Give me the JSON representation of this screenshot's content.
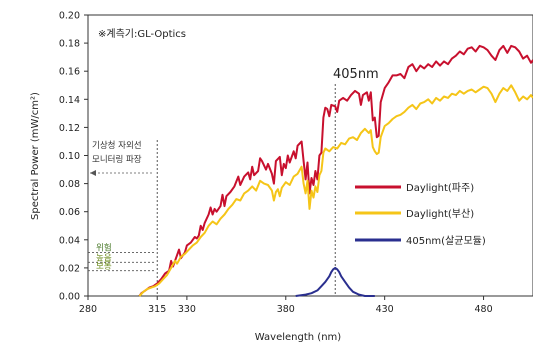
{
  "chart_data": {
    "type": "line",
    "note": "※계측기:GL-Optics",
    "xlabel": "Wavelength (nm)",
    "ylabel": "Spectral Power (mW/cm²)",
    "xlim": [
      280,
      505
    ],
    "ylim": [
      0,
      0.2
    ],
    "xticks": [
      {
        "value": 280,
        "label": "280"
      },
      {
        "value": 315,
        "label": "315"
      },
      {
        "value": 330,
        "label": "330"
      },
      {
        "value": 380,
        "label": "380"
      },
      {
        "value": 430,
        "label": "430"
      },
      {
        "value": 480,
        "label": "480"
      }
    ],
    "yticks": [
      {
        "value": 0,
        "label": "0.00"
      },
      {
        "value": 0.02,
        "label": "0.02"
      },
      {
        "value": 0.04,
        "label": "0.04"
      },
      {
        "value": 0.06,
        "label": "0.06"
      },
      {
        "value": 0.08,
        "label": "0.08"
      },
      {
        "value": 0.1,
        "label": "0.10"
      },
      {
        "value": 0.12,
        "label": "0.12"
      },
      {
        "value": 0.14,
        "label": "0.14"
      },
      {
        "value": 0.16,
        "label": "0.16"
      },
      {
        "value": 0.18,
        "label": "0.18"
      },
      {
        "value": 0.2,
        "label": "0.20"
      }
    ],
    "grid": false,
    "legend_position": "right",
    "annotations": {
      "peak_label": "405nm",
      "peak_x": 405,
      "uv_monitor_label": [
        "기상청 자외선",
        "모니터링 파장"
      ],
      "uv_monitor_x": 315,
      "levels": [
        {
          "label": "위험",
          "value": 0.031,
          "color": "#4a7a2a"
        },
        {
          "label": "높음",
          "value": 0.024,
          "color": "#6a8a1a"
        },
        {
          "label": "보통",
          "value": 0.018,
          "color": "#6a8a1a"
        }
      ]
    },
    "series": [
      {
        "name": "Daylight(파주)",
        "color": "#c8102e",
        "points": [
          [
            306,
            0
          ],
          [
            307,
            0.002
          ],
          [
            309,
            0.004
          ],
          [
            311,
            0.006
          ],
          [
            313,
            0.007
          ],
          [
            315,
            0.009
          ],
          [
            317,
            0.012
          ],
          [
            319,
            0.016
          ],
          [
            321,
            0.018
          ],
          [
            322,
            0.025
          ],
          [
            323,
            0.021
          ],
          [
            325,
            0.029
          ],
          [
            326,
            0.033
          ],
          [
            327,
            0.027
          ],
          [
            329,
            0.031
          ],
          [
            330,
            0.036
          ],
          [
            332,
            0.038
          ],
          [
            334,
            0.042
          ],
          [
            335,
            0.041
          ],
          [
            336,
            0.043
          ],
          [
            337,
            0.05
          ],
          [
            338,
            0.047
          ],
          [
            339,
            0.052
          ],
          [
            341,
            0.058
          ],
          [
            342,
            0.063
          ],
          [
            343,
            0.058
          ],
          [
            344,
            0.062
          ],
          [
            345,
            0.06
          ],
          [
            347,
            0.064
          ],
          [
            348,
            0.072
          ],
          [
            349,
            0.064
          ],
          [
            350,
            0.071
          ],
          [
            352,
            0.074
          ],
          [
            354,
            0.078
          ],
          [
            356,
            0.085
          ],
          [
            357,
            0.079
          ],
          [
            359,
            0.085
          ],
          [
            361,
            0.088
          ],
          [
            362,
            0.083
          ],
          [
            363,
            0.092
          ],
          [
            364,
            0.086
          ],
          [
            366,
            0.089
          ],
          [
            367,
            0.098
          ],
          [
            368,
            0.096
          ],
          [
            370,
            0.09
          ],
          [
            371,
            0.094
          ],
          [
            373,
            0.087
          ],
          [
            374,
            0.08
          ],
          [
            375,
            0.096
          ],
          [
            377,
            0.099
          ],
          [
            378,
            0.086
          ],
          [
            379,
            0.094
          ],
          [
            380,
            0.091
          ],
          [
            381,
            0.1
          ],
          [
            382,
            0.095
          ],
          [
            384,
            0.103
          ],
          [
            385,
            0.098
          ],
          [
            386,
            0.107
          ],
          [
            388,
            0.11
          ],
          [
            389,
            0.096
          ],
          [
            390,
            0.083
          ],
          [
            391,
            0.095
          ],
          [
            392,
            0.073
          ],
          [
            393,
            0.084
          ],
          [
            394,
            0.079
          ],
          [
            395,
            0.089
          ],
          [
            396,
            0.083
          ],
          [
            397,
            0.1
          ],
          [
            398,
            0.102
          ],
          [
            399,
            0.127
          ],
          [
            400,
            0.134
          ],
          [
            401,
            0.133
          ],
          [
            402,
            0.128
          ],
          [
            403,
            0.136
          ],
          [
            405,
            0.135
          ],
          [
            406,
            0.131
          ],
          [
            407,
            0.139
          ],
          [
            409,
            0.141
          ],
          [
            411,
            0.139
          ],
          [
            413,
            0.143
          ],
          [
            415,
            0.146
          ],
          [
            417,
            0.144
          ],
          [
            418,
            0.136
          ],
          [
            419,
            0.143
          ],
          [
            421,
            0.145
          ],
          [
            422,
            0.139
          ],
          [
            423,
            0.145
          ],
          [
            424,
            0.125
          ],
          [
            425,
            0.127
          ],
          [
            426,
            0.113
          ],
          [
            427,
            0.114
          ],
          [
            428,
            0.138
          ],
          [
            430,
            0.148
          ],
          [
            432,
            0.152
          ],
          [
            434,
            0.157
          ],
          [
            436,
            0.157
          ],
          [
            438,
            0.158
          ],
          [
            440,
            0.155
          ],
          [
            442,
            0.163
          ],
          [
            444,
            0.165
          ],
          [
            446,
            0.16
          ],
          [
            448,
            0.164
          ],
          [
            450,
            0.162
          ],
          [
            452,
            0.165
          ],
          [
            454,
            0.163
          ],
          [
            456,
            0.167
          ],
          [
            458,
            0.164
          ],
          [
            460,
            0.167
          ],
          [
            462,
            0.165
          ],
          [
            464,
            0.169
          ],
          [
            466,
            0.171
          ],
          [
            468,
            0.174
          ],
          [
            470,
            0.172
          ],
          [
            472,
            0.176
          ],
          [
            474,
            0.177
          ],
          [
            476,
            0.174
          ],
          [
            478,
            0.178
          ],
          [
            480,
            0.177
          ],
          [
            482,
            0.175
          ],
          [
            484,
            0.171
          ],
          [
            486,
            0.168
          ],
          [
            488,
            0.175
          ],
          [
            490,
            0.178
          ],
          [
            492,
            0.173
          ],
          [
            494,
            0.178
          ],
          [
            496,
            0.177
          ],
          [
            498,
            0.174
          ],
          [
            500,
            0.169
          ],
          [
            502,
            0.171
          ],
          [
            504,
            0.166
          ],
          [
            505,
            0.168
          ]
        ]
      },
      {
        "name": "Daylight(부산)",
        "color": "#f5c518",
        "points": [
          [
            306,
            0
          ],
          [
            308,
            0.003
          ],
          [
            310,
            0.005
          ],
          [
            312,
            0.006
          ],
          [
            314,
            0.007
          ],
          [
            316,
            0.009
          ],
          [
            318,
            0.012
          ],
          [
            320,
            0.015
          ],
          [
            322,
            0.02
          ],
          [
            324,
            0.025
          ],
          [
            325,
            0.023
          ],
          [
            327,
            0.028
          ],
          [
            329,
            0.03
          ],
          [
            331,
            0.033
          ],
          [
            333,
            0.036
          ],
          [
            335,
            0.038
          ],
          [
            337,
            0.042
          ],
          [
            339,
            0.045
          ],
          [
            341,
            0.05
          ],
          [
            343,
            0.053
          ],
          [
            345,
            0.051
          ],
          [
            347,
            0.055
          ],
          [
            349,
            0.058
          ],
          [
            351,
            0.062
          ],
          [
            353,
            0.065
          ],
          [
            355,
            0.069
          ],
          [
            357,
            0.068
          ],
          [
            359,
            0.073
          ],
          [
            361,
            0.075
          ],
          [
            363,
            0.078
          ],
          [
            365,
            0.075
          ],
          [
            367,
            0.082
          ],
          [
            369,
            0.08
          ],
          [
            371,
            0.079
          ],
          [
            373,
            0.075
          ],
          [
            374,
            0.068
          ],
          [
            375,
            0.074
          ],
          [
            376,
            0.076
          ],
          [
            377,
            0.071
          ],
          [
            378,
            0.077
          ],
          [
            380,
            0.081
          ],
          [
            382,
            0.079
          ],
          [
            384,
            0.085
          ],
          [
            386,
            0.087
          ],
          [
            388,
            0.092
          ],
          [
            389,
            0.08
          ],
          [
            390,
            0.073
          ],
          [
            391,
            0.082
          ],
          [
            392,
            0.062
          ],
          [
            393,
            0.075
          ],
          [
            394,
            0.07
          ],
          [
            395,
            0.078
          ],
          [
            396,
            0.074
          ],
          [
            397,
            0.086
          ],
          [
            398,
            0.089
          ],
          [
            399,
            0.102
          ],
          [
            400,
            0.105
          ],
          [
            402,
            0.103
          ],
          [
            404,
            0.106
          ],
          [
            406,
            0.105
          ],
          [
            408,
            0.109
          ],
          [
            410,
            0.108
          ],
          [
            412,
            0.112
          ],
          [
            414,
            0.113
          ],
          [
            416,
            0.111
          ],
          [
            418,
            0.116
          ],
          [
            420,
            0.119
          ],
          [
            422,
            0.116
          ],
          [
            423,
            0.118
          ],
          [
            424,
            0.106
          ],
          [
            425,
            0.103
          ],
          [
            426,
            0.101
          ],
          [
            427,
            0.102
          ],
          [
            428,
            0.113
          ],
          [
            430,
            0.121
          ],
          [
            432,
            0.123
          ],
          [
            434,
            0.126
          ],
          [
            436,
            0.128
          ],
          [
            438,
            0.129
          ],
          [
            440,
            0.131
          ],
          [
            442,
            0.134
          ],
          [
            444,
            0.136
          ],
          [
            446,
            0.133
          ],
          [
            448,
            0.137
          ],
          [
            450,
            0.138
          ],
          [
            452,
            0.14
          ],
          [
            454,
            0.137
          ],
          [
            456,
            0.141
          ],
          [
            458,
            0.139
          ],
          [
            460,
            0.142
          ],
          [
            462,
            0.141
          ],
          [
            464,
            0.144
          ],
          [
            466,
            0.143
          ],
          [
            468,
            0.146
          ],
          [
            470,
            0.144
          ],
          [
            472,
            0.146
          ],
          [
            474,
            0.147
          ],
          [
            476,
            0.145
          ],
          [
            478,
            0.147
          ],
          [
            480,
            0.149
          ],
          [
            482,
            0.148
          ],
          [
            484,
            0.144
          ],
          [
            486,
            0.138
          ],
          [
            488,
            0.144
          ],
          [
            490,
            0.148
          ],
          [
            492,
            0.146
          ],
          [
            494,
            0.15
          ],
          [
            496,
            0.145
          ],
          [
            498,
            0.139
          ],
          [
            500,
            0.142
          ],
          [
            502,
            0.14
          ],
          [
            504,
            0.143
          ],
          [
            505,
            0.141
          ]
        ]
      },
      {
        "name": "405nm(살균모듈)",
        "color": "#2a2f8f",
        "points": [
          [
            385,
            0
          ],
          [
            390,
            0.001
          ],
          [
            393,
            0.002
          ],
          [
            396,
            0.004
          ],
          [
            398,
            0.007
          ],
          [
            400,
            0.01
          ],
          [
            402,
            0.014
          ],
          [
            403,
            0.017
          ],
          [
            404,
            0.019
          ],
          [
            405,
            0.02
          ],
          [
            406,
            0.019
          ],
          [
            407,
            0.017
          ],
          [
            408,
            0.014
          ],
          [
            410,
            0.01
          ],
          [
            412,
            0.006
          ],
          [
            414,
            0.003
          ],
          [
            417,
            0.001
          ],
          [
            420,
            0
          ],
          [
            425,
            0
          ]
        ]
      }
    ]
  }
}
